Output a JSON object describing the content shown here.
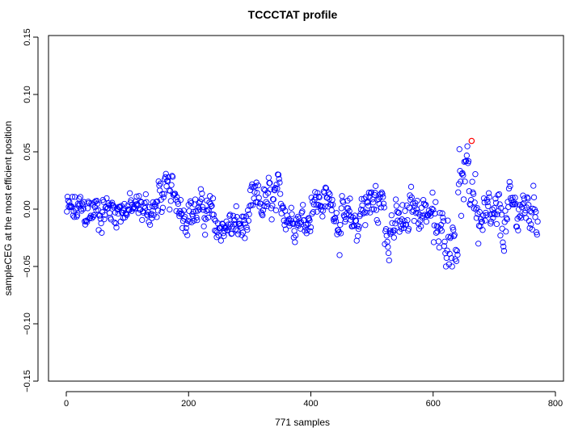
{
  "chart_data": {
    "type": "scatter",
    "title": "TCCCTAT profile",
    "xlabel": "771 samples",
    "ylabel": "sampleCEG at the most efficient position",
    "xlim": [
      0,
      800
    ],
    "ylim": [
      -0.15,
      0.15
    ],
    "x_ticks": [
      {
        "value": 0,
        "label": "0"
      },
      {
        "value": 200,
        "label": "200"
      },
      {
        "value": 400,
        "label": "400"
      },
      {
        "value": 600,
        "label": "600"
      },
      {
        "value": 800,
        "label": "800"
      }
    ],
    "y_ticks": [
      {
        "value": -0.15,
        "label": "−0.15"
      },
      {
        "value": -0.1,
        "label": "−0.10"
      },
      {
        "value": -0.05,
        "label": "−0.05"
      },
      {
        "value": 0.0,
        "label": "0.00"
      },
      {
        "value": 0.05,
        "label": "0.05"
      },
      {
        "value": 0.1,
        "label": "0.10"
      },
      {
        "value": 0.15,
        "label": "0.15"
      }
    ],
    "grid": false,
    "legend": "none",
    "point_color": "#0000ff",
    "highlight_color": "#ff0000",
    "n_points": 771,
    "highlight_point": {
      "x": 663,
      "y": 0.0595
    },
    "segments": [
      {
        "from": 1,
        "to": 60,
        "center": -0.002,
        "spread": 0.022
      },
      {
        "from": 61,
        "to": 150,
        "center": 0.0,
        "spread": 0.018
      },
      {
        "from": 151,
        "to": 185,
        "center": 0.012,
        "spread": 0.022
      },
      {
        "from": 186,
        "to": 240,
        "center": -0.002,
        "spread": 0.02
      },
      {
        "from": 241,
        "to": 300,
        "center": -0.015,
        "spread": 0.02
      },
      {
        "from": 301,
        "to": 360,
        "center": 0.005,
        "spread": 0.025
      },
      {
        "from": 361,
        "to": 400,
        "center": -0.008,
        "spread": 0.018
      },
      {
        "from": 401,
        "to": 440,
        "center": 0.006,
        "spread": 0.02
      },
      {
        "from": 441,
        "to": 480,
        "center": -0.012,
        "spread": 0.024
      },
      {
        "from": 481,
        "to": 520,
        "center": 0.004,
        "spread": 0.03
      },
      {
        "from": 521,
        "to": 560,
        "center": -0.014,
        "spread": 0.025
      },
      {
        "from": 561,
        "to": 600,
        "center": 0.0,
        "spread": 0.02
      },
      {
        "from": 601,
        "to": 640,
        "center": -0.022,
        "spread": 0.03
      },
      {
        "from": 641,
        "to": 670,
        "center": 0.02,
        "spread": 0.035
      },
      {
        "from": 671,
        "to": 720,
        "center": -0.012,
        "spread": 0.03
      },
      {
        "from": 721,
        "to": 771,
        "center": 0.0,
        "spread": 0.025
      }
    ]
  }
}
